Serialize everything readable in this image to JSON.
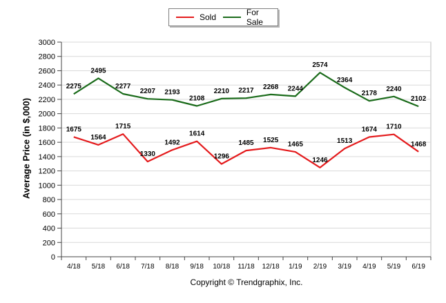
{
  "chart_data": {
    "type": "line",
    "categories": [
      "4/18",
      "5/18",
      "6/18",
      "7/18",
      "8/18",
      "9/18",
      "10/18",
      "11/18",
      "12/18",
      "1/19",
      "2/19",
      "3/19",
      "4/19",
      "5/19",
      "6/19"
    ],
    "series": [
      {
        "name": "Sold",
        "color": "#e41a1c",
        "values": [
          1675,
          1564,
          1715,
          1330,
          1492,
          1614,
          1296,
          1485,
          1525,
          1465,
          1246,
          1513,
          1674,
          1710,
          1468
        ]
      },
      {
        "name": "For Sale",
        "color": "#1a6b1a",
        "values": [
          2275,
          2495,
          2277,
          2207,
          2193,
          2108,
          2210,
          2217,
          2268,
          2244,
          2574,
          2364,
          2178,
          2240,
          2102
        ]
      }
    ],
    "ylabel": "Average Price (in $,000)",
    "ylim": [
      0,
      3000
    ],
    "yticks": [
      0,
      200,
      400,
      600,
      800,
      1000,
      1200,
      1400,
      1600,
      1800,
      2000,
      2200,
      2400,
      2600,
      2800,
      3000
    ],
    "grid": true,
    "legend_position": "top-center"
  },
  "footer": {
    "copyright": "Copyright © Trendgraphix, Inc."
  }
}
